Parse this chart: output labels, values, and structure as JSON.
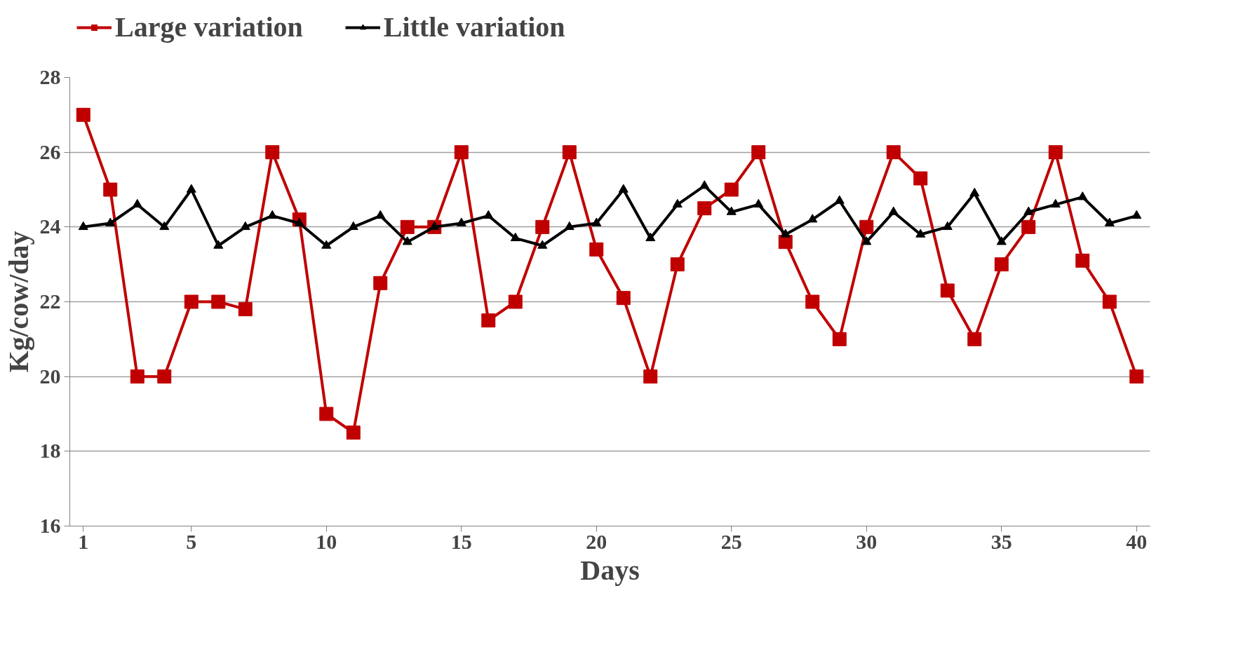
{
  "chart_data": {
    "type": "line",
    "xlabel": "Days",
    "ylabel": "Kg/cow/day",
    "x": [
      1,
      2,
      3,
      4,
      5,
      6,
      7,
      8,
      9,
      10,
      11,
      12,
      13,
      14,
      15,
      16,
      17,
      18,
      19,
      20,
      21,
      22,
      23,
      24,
      25,
      26,
      27,
      28,
      29,
      30,
      31,
      32,
      33,
      34,
      35,
      36,
      37,
      38,
      39,
      40
    ],
    "xlim": [
      0.5,
      40.5
    ],
    "xticks": [
      1,
      5,
      10,
      15,
      20,
      25,
      30,
      35,
      40
    ],
    "ylim": [
      16,
      28
    ],
    "yticks": [
      16,
      18,
      20,
      22,
      24,
      26,
      28
    ],
    "grid": "y",
    "legend": "top",
    "line_style": "solid",
    "series": [
      {
        "name": "Large variation",
        "color": "#c00000",
        "marker": "square",
        "values": [
          27,
          25,
          20,
          20,
          22,
          22,
          21.8,
          26,
          24.2,
          19,
          18.5,
          22.5,
          24,
          24,
          26,
          21.5,
          22,
          24,
          26,
          23.4,
          22.1,
          20,
          23,
          24.5,
          25,
          26,
          23.6,
          22,
          21,
          24,
          26,
          25.3,
          22.3,
          21,
          23,
          24,
          26,
          23.1,
          22,
          20
        ]
      },
      {
        "name": "Little variation",
        "color": "#000000",
        "marker": "triangle",
        "values": [
          24,
          24.1,
          24.6,
          24,
          25,
          23.5,
          24,
          24.3,
          24.1,
          23.5,
          24,
          24.3,
          23.6,
          24,
          24.1,
          24.3,
          23.7,
          23.5,
          24,
          24.1,
          25,
          23.7,
          24.6,
          25.1,
          24.4,
          24.6,
          23.8,
          24.2,
          24.7,
          23.6,
          24.4,
          23.8,
          24,
          24.9,
          23.6,
          24.4,
          24.6,
          24.8,
          24.1,
          24.3
        ]
      }
    ]
  }
}
